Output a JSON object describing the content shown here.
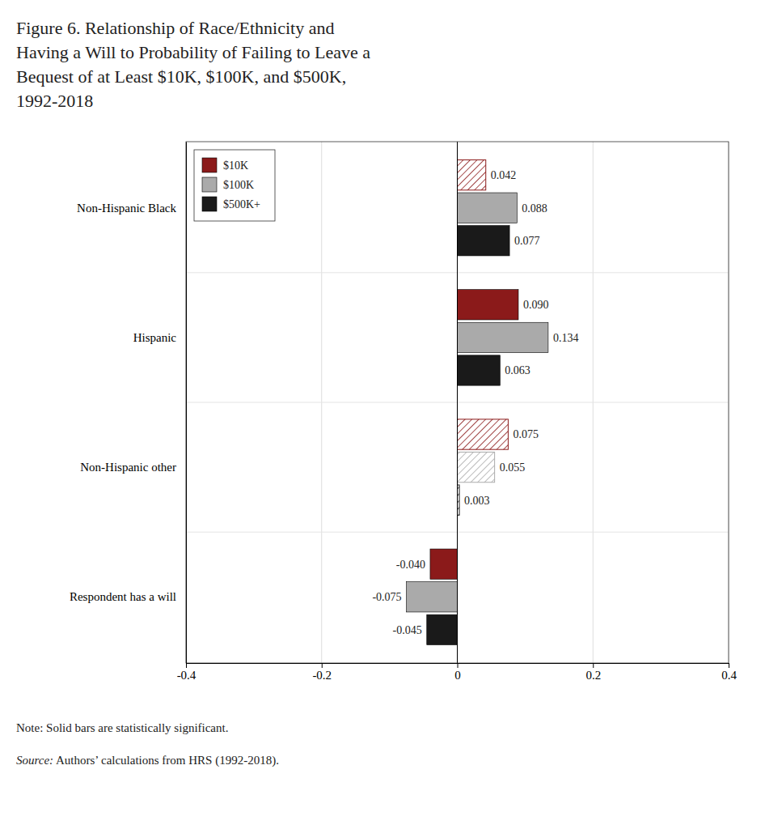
{
  "chart_data": {
    "type": "bar",
    "orientation": "horizontal",
    "title": "Figure 6. Relationship of Race/Ethnicity and\nHaving a Will to Probability of Failing to Leave a\nBequest of at Least $10K, $100K, and $500K,\n1992-2018",
    "categories": [
      "Non-Hispanic Black",
      "Hispanic",
      "Non-Hispanic other",
      "Respondent has a will"
    ],
    "series": [
      {
        "name": "$10K",
        "color": "#8B1A1A",
        "values": [
          0.042,
          0.09,
          0.075,
          -0.04
        ],
        "value_labels": [
          "0.042",
          "0.090",
          "0.075",
          "-0.040"
        ],
        "significant": [
          false,
          true,
          false,
          true
        ]
      },
      {
        "name": "$100K",
        "color": "#AAAAAA",
        "values": [
          0.088,
          0.134,
          0.055,
          -0.075
        ],
        "value_labels": [
          "0.088",
          "0.134",
          "0.055",
          "-0.075"
        ],
        "significant": [
          true,
          true,
          false,
          true
        ]
      },
      {
        "name": "$500K+",
        "color": "#1A1A1A",
        "values": [
          0.077,
          0.063,
          0.003,
          -0.045
        ],
        "value_labels": [
          "0.077",
          "0.063",
          "0.003",
          "-0.045"
        ],
        "significant": [
          true,
          true,
          false,
          true
        ]
      }
    ],
    "xlim": [
      -0.4,
      0.4
    ],
    "xticks": [
      -0.4,
      -0.2,
      0,
      0.2,
      0.4
    ],
    "grid": true,
    "legend": "upper left",
    "data_labels": true,
    "note": "Note: Solid bars are statistically significant.",
    "source_label": "Source:",
    "source": " Authors’ calculations from HRS (1992-2018)."
  }
}
